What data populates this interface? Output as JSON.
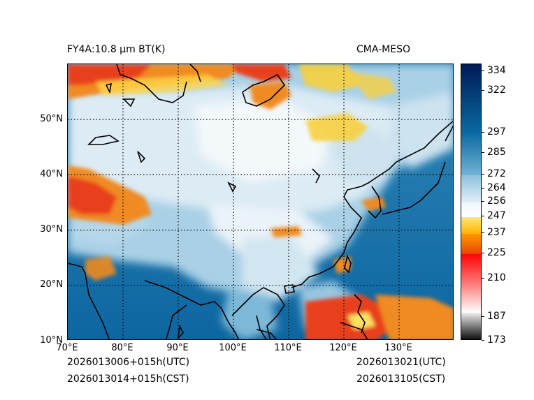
{
  "header": {
    "title_left": "FY4A:10.8 µm BT(K)",
    "title_right": "CMA-MESO"
  },
  "footer": {
    "utc_left": "2026013006+015h(UTC)",
    "cst_left": "2026013014+015h(CST)",
    "utc_right": "2026013021(UTC)",
    "cst_right": "2026013105(CST)"
  },
  "map": {
    "lon_labels": [
      "70°E",
      "80°E",
      "90°E",
      "100°E",
      "110°E",
      "120°E",
      "130°E"
    ],
    "lat_labels": [
      "50°N",
      "40°N",
      "30°N",
      "20°N",
      "10°N"
    ],
    "extent": {
      "lon_min": 70,
      "lon_max": 140,
      "lat_min": 10,
      "lat_max": 60
    }
  },
  "colorbar": {
    "labels": [
      "334",
      "322",
      "297",
      "285",
      "272",
      "264",
      "256",
      "247",
      "237",
      "225",
      "210",
      "187",
      "173"
    ],
    "min": 173,
    "max": 338,
    "segments": [
      {
        "from": 173,
        "to": 190,
        "c1": "#000000",
        "c2": "#f2f2f2"
      },
      {
        "from": 190,
        "to": 205,
        "c1": "#ffffff",
        "c2": "#ff8a8a"
      },
      {
        "from": 205,
        "to": 225,
        "c1": "#ff8a8a",
        "c2": "#ff0000"
      },
      {
        "from": 225,
        "to": 237,
        "c1": "#e84800",
        "c2": "#ff9a00"
      },
      {
        "from": 237,
        "to": 247,
        "c1": "#ffb300",
        "c2": "#ffe87a"
      },
      {
        "from": 247,
        "to": 256,
        "c1": "#ffffff",
        "c2": "#eef6fb"
      },
      {
        "from": 256,
        "to": 272,
        "c1": "#dfeef6",
        "c2": "#8cc0dc"
      },
      {
        "from": 272,
        "to": 297,
        "c1": "#72b2d3",
        "c2": "#0b6aa2"
      },
      {
        "from": 297,
        "to": 338,
        "c1": "#0b6aa2",
        "c2": "#001a55"
      }
    ]
  },
  "colors": {
    "ocean": "#1874ad",
    "land_mid": "#7fb8d8",
    "cloud": "#eef5fa",
    "cold_cloud": "#f6d040",
    "storm": "#e8401a"
  }
}
